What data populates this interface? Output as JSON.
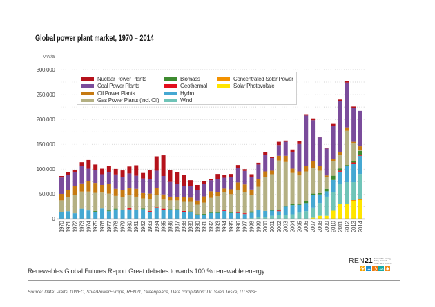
{
  "chart_data": {
    "type": "bar",
    "stacked": true,
    "title": "Global power plant market, 1970 – 2014",
    "xlabel": "",
    "ylabel": "MW/a",
    "ylim": [
      0,
      300000
    ],
    "yticks": [
      0,
      50000,
      100000,
      150000,
      200000,
      250000,
      300000
    ],
    "ytick_labels": [
      "0",
      "50,000",
      "100,000",
      "150,000",
      "200,000",
      "250,000",
      "300,000"
    ],
    "grid": true,
    "grid_step": 25000,
    "legend_position": "top-left",
    "categories": [
      "1970",
      "1971",
      "1972",
      "1973",
      "1974",
      "1975",
      "1976",
      "1977",
      "1978",
      "1979",
      "1980",
      "1981",
      "1982",
      "1983",
      "1984",
      "1985",
      "1986",
      "1987",
      "1988",
      "1989",
      "1990",
      "1991",
      "1992",
      "1993",
      "1994",
      "1995",
      "1996",
      "1997",
      "1998",
      "1999",
      "2000",
      "2001",
      "2002",
      "2003",
      "2004",
      "2005",
      "2006",
      "2007",
      "2008",
      "2009",
      "2010",
      "2011",
      "2012",
      "2013",
      "2014"
    ],
    "series": [
      {
        "key": "nuclear",
        "name": "Nuclear Power Plants",
        "color": "#b5121b",
        "values": [
          3000,
          5500,
          5500,
          7500,
          17500,
          11500,
          11000,
          11500,
          11000,
          12500,
          14000,
          21000,
          11000,
          18000,
          29000,
          41500,
          24000,
          24000,
          22000,
          11500,
          10500,
          5500,
          2000,
          10500,
          5500,
          5500,
          5500,
          3500,
          5500,
          3500,
          5500,
          1500,
          6500,
          2500,
          4500,
          5500,
          2500,
          3500,
          1500,
          1500,
          3500,
          3500,
          3500,
          3500,
          0
        ]
      },
      {
        "key": "coal",
        "name": "Coal Power Plants",
        "color": "#7a4c9b",
        "values": [
          33000,
          30000,
          27000,
          35000,
          25500,
          25500,
          21500,
          24500,
          29000,
          27500,
          30000,
          26500,
          29500,
          29500,
          35000,
          37000,
          29500,
          26500,
          22500,
          23500,
          21000,
          25500,
          22500,
          25500,
          22000,
          25500,
          29500,
          27000,
          25500,
          29000,
          33500,
          25500,
          21500,
          28000,
          34000,
          55000,
          102000,
          82500,
          58000,
          54000,
          67000,
          101500,
          90000,
          67500,
          71000
        ]
      },
      {
        "key": "oil",
        "name": "Oil Power Plants",
        "color": "#c67a12",
        "values": [
          13000,
          15000,
          18500,
          16500,
          20500,
          20000,
          15500,
          19000,
          14000,
          14000,
          14000,
          15500,
          10500,
          11500,
          14000,
          10500,
          7500,
          6500,
          9500,
          8500,
          8000,
          12500,
          13000,
          8500,
          7000,
          9500,
          15000,
          16000,
          10500,
          15500,
          11500,
          7000,
          9500,
          12500,
          8500,
          8000,
          10500,
          13000,
          9000,
          3500,
          4500,
          7000,
          7000,
          3500,
          7000
        ]
      },
      {
        "key": "gas",
        "name": "Gas Power Plants (incl. Oil)",
        "color": "#b4b083",
        "values": [
          24000,
          28000,
          36500,
          34500,
          38000,
          36500,
          32000,
          34000,
          26000,
          25000,
          26000,
          26500,
          20500,
          23500,
          24500,
          18500,
          18000,
          18000,
          18500,
          19500,
          19500,
          22500,
          29000,
          32500,
          36500,
          36500,
          45000,
          42000,
          33500,
          47500,
          68000,
          71500,
          98500,
          88000,
          62500,
          56500,
          60000,
          52000,
          45000,
          23500,
          29000,
          26500,
          68500,
          35500,
          2500
        ]
      },
      {
        "key": "biomass",
        "name": "Biomass",
        "color": "#3e8b30",
        "values": [
          0,
          0,
          0,
          0,
          0,
          1500,
          0,
          1500,
          1500,
          0,
          0,
          0,
          1500,
          0,
          0,
          0,
          1500,
          1500,
          0,
          1500,
          1500,
          1500,
          1500,
          1500,
          0,
          1500,
          0,
          0,
          2500,
          0,
          0,
          2000,
          2000,
          1500,
          2000,
          2500,
          3500,
          2500,
          2500,
          5000,
          8500,
          4500,
          2500,
          2500,
          8000
        ]
      },
      {
        "key": "geothermal",
        "name": "Geothermal",
        "color": "#e30f1d",
        "values": [
          0,
          0,
          0,
          0,
          0,
          0,
          0,
          0,
          0,
          0,
          2500,
          0,
          0,
          1500,
          2000,
          2000,
          0,
          0,
          2000,
          0,
          0,
          0,
          0,
          0,
          1500,
          0,
          1500,
          1500,
          0,
          0,
          0,
          0,
          1500,
          0,
          0,
          0,
          0,
          0,
          0,
          0,
          0,
          2000,
          0,
          2000,
          1500
        ]
      },
      {
        "key": "hydro",
        "name": "Hydro",
        "color": "#45a8d2",
        "values": [
          13500,
          15500,
          11500,
          20500,
          17000,
          14500,
          21000,
          15500,
          19000,
          18500,
          19000,
          18500,
          19500,
          14500,
          21500,
          18500,
          18000,
          18000,
          14000,
          13500,
          8000,
          9000,
          12000,
          12000,
          16000,
          12000,
          12000,
          10000,
          10500,
          14000,
          12500,
          10000,
          7500,
          17000,
          18500,
          16000,
          16500,
          25500,
          17500,
          10500,
          24000,
          25000,
          32000,
          37500,
          36500
        ]
      },
      {
        "key": "wind",
        "name": "Wind",
        "color": "#6fc4b8",
        "values": [
          0,
          0,
          0,
          0,
          0,
          0,
          0,
          0,
          0,
          0,
          0,
          0,
          0,
          0,
          0,
          0,
          0,
          0,
          0,
          0,
          0,
          0,
          0,
          0,
          0,
          0,
          0,
          0,
          2000,
          3500,
          3500,
          6500,
          8000,
          8000,
          9500,
          12500,
          15500,
          20500,
          25500,
          38500,
          38000,
          40000,
          44000,
          36000,
          51000
        ]
      },
      {
        "key": "csp",
        "name": "Concentrated Solar Power",
        "color": "#f39200",
        "values": [
          0,
          0,
          0,
          0,
          0,
          0,
          0,
          0,
          0,
          0,
          0,
          0,
          0,
          0,
          0,
          0,
          0,
          0,
          0,
          0,
          0,
          0,
          0,
          0,
          0,
          0,
          0,
          0,
          0,
          0,
          0,
          0,
          0,
          0,
          0,
          0,
          0,
          0,
          0,
          0,
          0,
          0,
          0,
          1500,
          1500
        ]
      },
      {
        "key": "solar-pv",
        "name": "Solar Photovoltaic",
        "color": "#ffe500",
        "values": [
          0,
          0,
          0,
          0,
          0,
          0,
          0,
          0,
          0,
          0,
          0,
          0,
          0,
          0,
          0,
          0,
          0,
          0,
          0,
          0,
          0,
          0,
          0,
          0,
          0,
          0,
          0,
          0,
          0,
          0,
          0,
          0,
          0,
          0,
          0,
          0,
          0,
          2500,
          6500,
          6500,
          16500,
          30000,
          30000,
          36500,
          38000
        ]
      }
    ]
  },
  "footer": {
    "report_title": "Renewables Global Futures Report Great debates towards 100 % renewable energy",
    "source": "Source: Data: Platts, GWEC, SolarPowerEurope, REN21, Greenpeace, Data compilation: Dr. Sven Teske, UTS/ISF",
    "logo": {
      "ren": "REN",
      "number": "21",
      "tagline": [
        "Renewable Energy",
        "Policy Network",
        "for the 21st Century"
      ],
      "icons": [
        {
          "name": "sun-icon",
          "color": "#f5a300"
        },
        {
          "name": "wind-turbine-icon",
          "color": "#1f8fcf"
        },
        {
          "name": "power-icon",
          "color": "#ef7b10"
        },
        {
          "name": "waves-icon",
          "color": "#17a9a4"
        },
        {
          "name": "leaf-icon",
          "color": "#f08a1c"
        }
      ]
    }
  }
}
